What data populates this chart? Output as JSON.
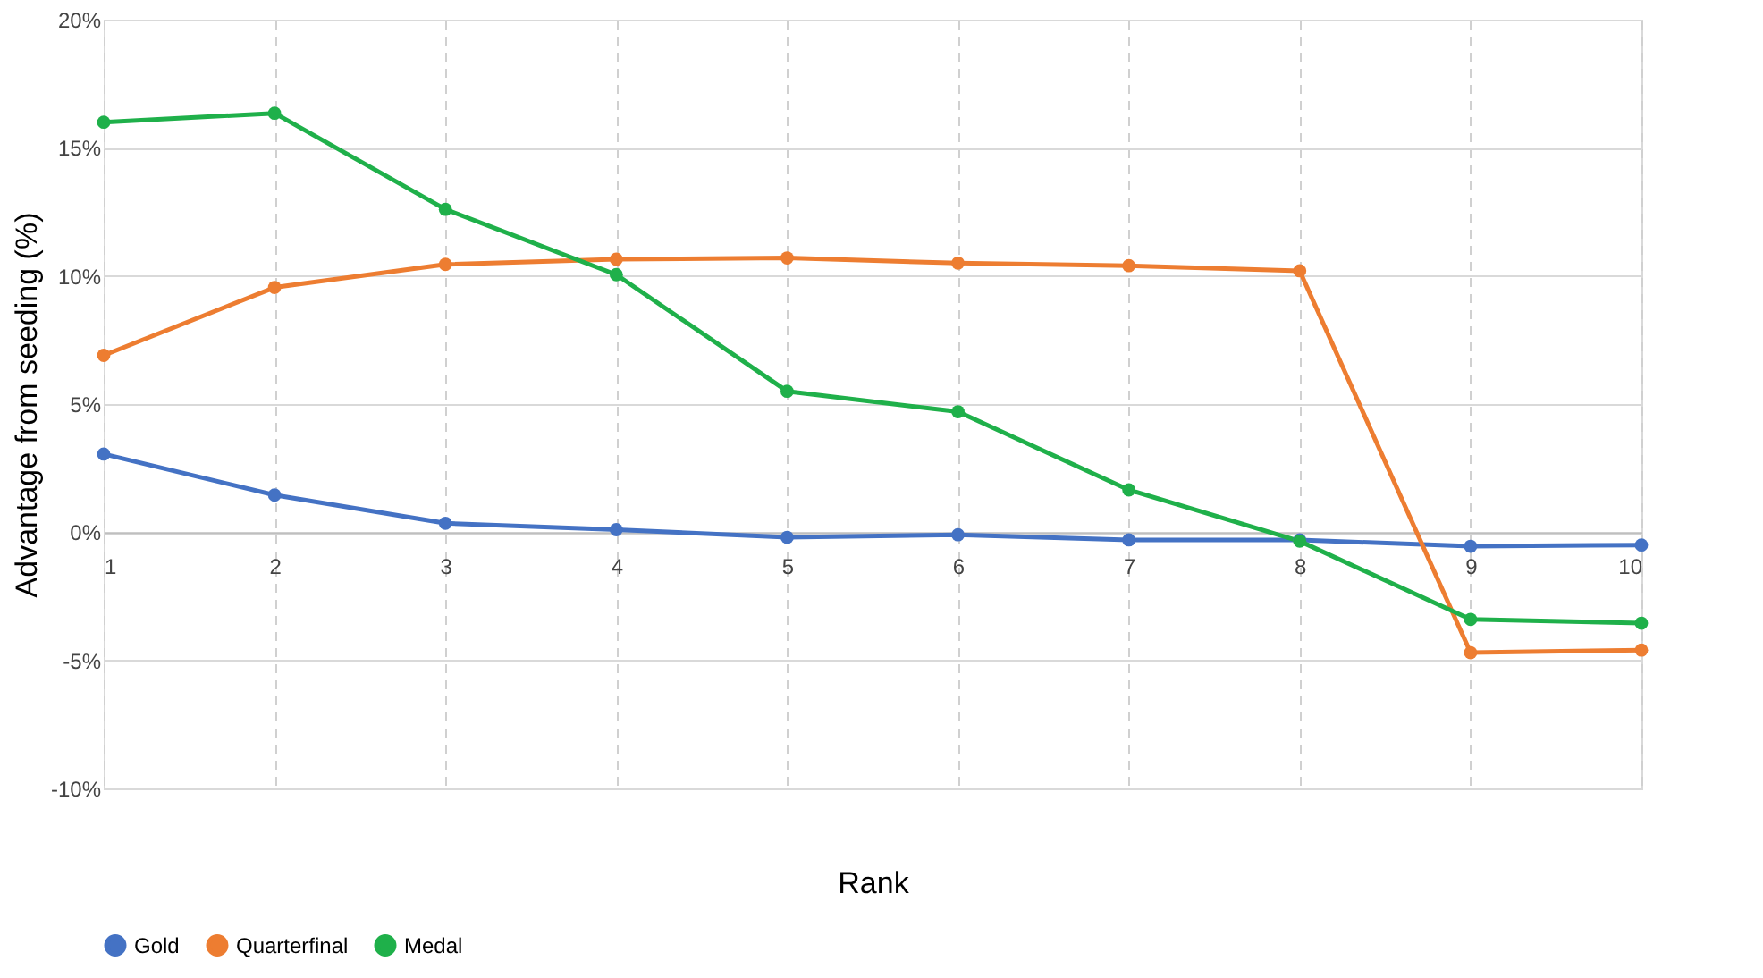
{
  "chart_data": {
    "type": "line",
    "xlabel": "Rank",
    "ylabel": "Advantage from seeding (%)",
    "x": [
      1,
      2,
      3,
      4,
      5,
      6,
      7,
      8,
      9,
      10
    ],
    "xlim": [
      1,
      10
    ],
    "xticks": [
      1,
      2,
      3,
      4,
      5,
      6,
      7,
      8,
      9,
      10
    ],
    "ylim": [
      -10,
      20
    ],
    "yticks": [
      {
        "value": -10,
        "label": "-10%"
      },
      {
        "value": -5,
        "label": "-5%"
      },
      {
        "value": 0,
        "label": "0%"
      },
      {
        "value": 5,
        "label": "5%"
      },
      {
        "value": 10,
        "label": "10%"
      },
      {
        "value": 15,
        "label": "15%"
      },
      {
        "value": 20,
        "label": "20%"
      }
    ],
    "grid": true,
    "legend": "bottom",
    "marker": "circle",
    "line_style": "solid",
    "series": [
      {
        "name": "Gold",
        "color": "#4472c4",
        "values": [
          3.05,
          1.45,
          0.35,
          0.1,
          -0.2,
          -0.1,
          -0.3,
          -0.3,
          -0.55,
          -0.5
        ]
      },
      {
        "name": "Quarterfinal",
        "color": "#ed7d31",
        "values": [
          6.9,
          9.55,
          10.45,
          10.65,
          10.7,
          10.5,
          10.4,
          10.2,
          -4.7,
          -4.6
        ]
      },
      {
        "name": "Medal",
        "color": "#1fb04a",
        "values": [
          16.0,
          16.35,
          12.6,
          10.05,
          5.5,
          4.7,
          1.65,
          -0.35,
          -3.4,
          -3.55
        ]
      }
    ]
  }
}
